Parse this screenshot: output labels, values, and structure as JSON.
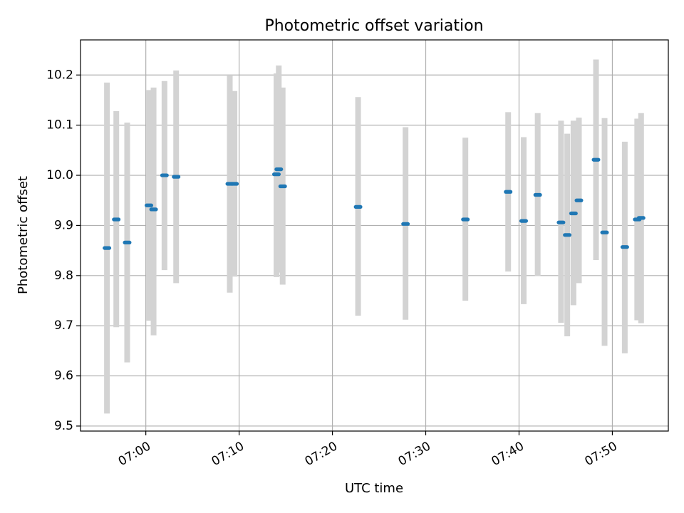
{
  "chart_data": {
    "type": "scatter",
    "title": "Photometric offset variation",
    "xlabel": "UTC time",
    "ylabel": "Photometric offset",
    "xlim": [
      "06:53",
      "07:56"
    ],
    "ylim": [
      9.49,
      10.27
    ],
    "x_ticks": [
      "07:00",
      "07:10",
      "07:20",
      "07:30",
      "07:40",
      "07:50"
    ],
    "y_ticks": [
      9.5,
      9.6,
      9.7,
      9.8,
      9.9,
      10.0,
      10.1,
      10.2
    ],
    "grid": true,
    "series_color": "#1f77b4",
    "errorbar_color": "#d3d3d3",
    "points": [
      {
        "x": "06:55:50",
        "y": 9.855,
        "lo": 9.525,
        "hi": 10.185
      },
      {
        "x": "06:56:50",
        "y": 9.912,
        "lo": 9.697,
        "hi": 10.128
      },
      {
        "x": "06:58:00",
        "y": 9.866,
        "lo": 9.627,
        "hi": 10.105
      },
      {
        "x": "07:00:20",
        "y": 9.94,
        "lo": 9.71,
        "hi": 10.17
      },
      {
        "x": "07:00:50",
        "y": 9.932,
        "lo": 9.681,
        "hi": 10.175
      },
      {
        "x": "07:02:00",
        "y": 10.0,
        "lo": 9.811,
        "hi": 10.188
      },
      {
        "x": "07:03:15",
        "y": 9.997,
        "lo": 9.785,
        "hi": 10.209
      },
      {
        "x": "07:09:00",
        "y": 9.983,
        "lo": 9.766,
        "hi": 10.2
      },
      {
        "x": "07:09:30",
        "y": 9.983,
        "lo": 9.798,
        "hi": 10.168
      },
      {
        "x": "07:14:00",
        "y": 10.002,
        "lo": 9.797,
        "hi": 10.203
      },
      {
        "x": "07:14:15",
        "y": 10.012,
        "lo": 9.806,
        "hi": 10.219
      },
      {
        "x": "07:14:40",
        "y": 9.978,
        "lo": 9.782,
        "hi": 10.175
      },
      {
        "x": "07:22:45",
        "y": 9.937,
        "lo": 9.72,
        "hi": 10.156
      },
      {
        "x": "07:27:50",
        "y": 9.903,
        "lo": 9.712,
        "hi": 10.096
      },
      {
        "x": "07:34:15",
        "y": 9.912,
        "lo": 9.75,
        "hi": 10.075
      },
      {
        "x": "07:38:50",
        "y": 9.967,
        "lo": 9.808,
        "hi": 10.126
      },
      {
        "x": "07:40:30",
        "y": 9.909,
        "lo": 9.743,
        "hi": 10.076
      },
      {
        "x": "07:42:00",
        "y": 9.961,
        "lo": 9.799,
        "hi": 10.124
      },
      {
        "x": "07:44:30",
        "y": 9.906,
        "lo": 9.706,
        "hi": 10.109
      },
      {
        "x": "07:45:10",
        "y": 9.881,
        "lo": 9.679,
        "hi": 10.083
      },
      {
        "x": "07:45:50",
        "y": 9.924,
        "lo": 9.741,
        "hi": 10.109
      },
      {
        "x": "07:46:25",
        "y": 9.95,
        "lo": 9.785,
        "hi": 10.115
      },
      {
        "x": "07:48:15",
        "y": 10.031,
        "lo": 9.831,
        "hi": 10.231
      },
      {
        "x": "07:49:10",
        "y": 9.886,
        "lo": 9.66,
        "hi": 10.114
      },
      {
        "x": "07:51:20",
        "y": 9.857,
        "lo": 9.645,
        "hi": 10.067
      },
      {
        "x": "07:52:40",
        "y": 9.912,
        "lo": 9.711,
        "hi": 10.113
      },
      {
        "x": "07:53:05",
        "y": 9.915,
        "lo": 9.705,
        "hi": 10.124
      }
    ]
  }
}
